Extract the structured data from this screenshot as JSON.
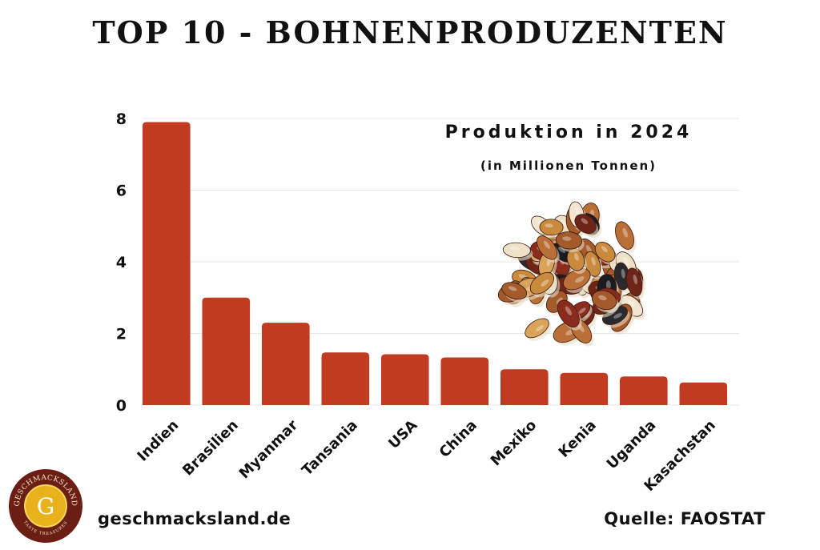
{
  "header": {
    "title": "TOP 10 - BOHNENPRODUZENTEN"
  },
  "annotation": {
    "subtitle": "Produktion in 2024",
    "unit": "(in Millionen Tonnen)"
  },
  "footer": {
    "site": "geschmacksland.de",
    "source": "Quelle: FAOSTAT"
  },
  "logo": {
    "top_text": "GESCHMACKSLAND",
    "bottom_text": "TASTE TREASURES",
    "letter": "G"
  },
  "chart_data": {
    "type": "bar",
    "title": "",
    "xlabel": "",
    "ylabel": "",
    "categories": [
      "Indien",
      "Brasilien",
      "Myanmar",
      "Tansania",
      "USA",
      "China",
      "Mexiko",
      "Kenia",
      "Uganda",
      "Kasachstan"
    ],
    "values": [
      7.9,
      3.0,
      2.3,
      1.47,
      1.42,
      1.33,
      1.0,
      0.9,
      0.8,
      0.63
    ],
    "ylim": [
      0,
      8
    ],
    "yticks": [
      0,
      2,
      4,
      6,
      8
    ],
    "grid": true,
    "colors": {
      "bar": "#c03b1f",
      "grid": "#e6e6e6",
      "text": "#111111"
    }
  },
  "illustration": {
    "icon": "beans-icon"
  }
}
